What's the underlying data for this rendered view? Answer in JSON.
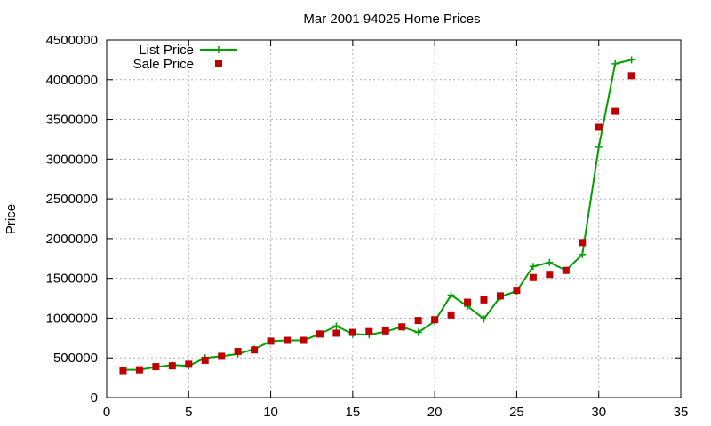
{
  "chart_data": {
    "type": "line",
    "title": "Mar 2001 94025 Home Prices",
    "xlabel": "",
    "ylabel": "Price",
    "xlim": [
      0,
      35
    ],
    "ylim": [
      0,
      4500000
    ],
    "xticks": [
      0,
      5,
      10,
      15,
      20,
      25,
      30,
      35
    ],
    "xtick_labels": [
      "0",
      "5",
      "10",
      "15",
      "20",
      "25",
      "30",
      "35"
    ],
    "yticks": [
      0,
      500000,
      1000000,
      1500000,
      2000000,
      2500000,
      3000000,
      3500000,
      4000000,
      4500000
    ],
    "ytick_labels": [
      "0",
      "500000",
      "1000000",
      "1500000",
      "2000000",
      "2500000",
      "3000000",
      "3500000",
      "4000000",
      "4500000"
    ],
    "grid": true,
    "legend_position": "top-left",
    "series": [
      {
        "name": "List Price",
        "style": "linespoints",
        "color": "#00a000",
        "x": [
          1,
          2,
          3,
          4,
          5,
          6,
          7,
          8,
          9,
          10,
          11,
          12,
          13,
          14,
          15,
          16,
          17,
          18,
          19,
          20,
          21,
          22,
          23,
          24,
          25,
          26,
          27,
          28,
          29,
          30,
          31,
          32
        ],
        "y": [
          350000,
          350000,
          385000,
          410000,
          400000,
          500000,
          520000,
          550000,
          610000,
          710000,
          720000,
          720000,
          800000,
          900000,
          800000,
          790000,
          830000,
          890000,
          820000,
          960000,
          1290000,
          1150000,
          990000,
          1270000,
          1340000,
          1650000,
          1700000,
          1600000,
          1800000,
          3150000,
          4200000,
          4250000
        ]
      },
      {
        "name": "Sale Price",
        "style": "points",
        "color": "#c00000",
        "x": [
          1,
          2,
          3,
          4,
          5,
          6,
          7,
          8,
          9,
          10,
          11,
          12,
          13,
          14,
          15,
          16,
          17,
          18,
          19,
          20,
          21,
          22,
          23,
          24,
          25,
          26,
          27,
          28,
          29,
          30,
          31,
          32
        ],
        "y": [
          340000,
          350000,
          390000,
          400000,
          420000,
          470000,
          520000,
          580000,
          600000,
          710000,
          720000,
          720000,
          800000,
          810000,
          820000,
          830000,
          840000,
          890000,
          970000,
          980000,
          1040000,
          1200000,
          1230000,
          1280000,
          1350000,
          1510000,
          1550000,
          1600000,
          1950000,
          3400000,
          3600000,
          4050000
        ]
      }
    ]
  }
}
